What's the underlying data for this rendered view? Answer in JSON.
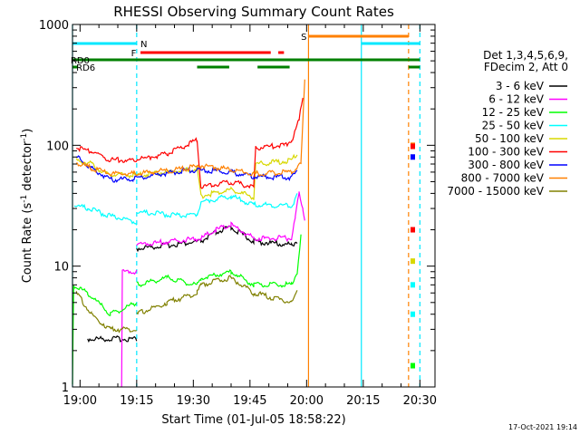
{
  "chart_data": {
    "type": "line",
    "title": "RHESSI Observing Summary Count Rates",
    "xlabel": "Start Time (01-Jul-05 18:58:22)",
    "ylabel_parts": [
      "Count Rate (s",
      "-1",
      " detector",
      "-1",
      ")"
    ],
    "y_scale": "log",
    "ylim": [
      1,
      1000
    ],
    "xlim_minutes": [
      0,
      96
    ],
    "x_tick_labels": [
      {
        "t": 2,
        "label": "19:00"
      },
      {
        "t": 17,
        "label": "19:15"
      },
      {
        "t": 32,
        "label": "19:30"
      },
      {
        "t": 47,
        "label": "19:45"
      },
      {
        "t": 62,
        "label": "20:00"
      },
      {
        "t": 77,
        "label": "20:15"
      },
      {
        "t": 92,
        "label": "20:30"
      }
    ],
    "y_tick_labels": [
      {
        "v": 1,
        "label": "1"
      },
      {
        "v": 10,
        "label": "10"
      },
      {
        "v": 100,
        "label": "100"
      },
      {
        "v": 1000,
        "label": "1000"
      }
    ],
    "legend_header": [
      "Det 1,3,4,5,6,9,",
      "FDecim 2, Att 0"
    ],
    "legend_placement": "right",
    "series": [
      {
        "name": "3 - 6 keV",
        "color": "#000000",
        "segs": [
          [
            [
              4,
              2.5
            ],
            [
              17,
              2.5
            ]
          ],
          [
            [
              17,
              14
            ],
            [
              34,
              16
            ],
            [
              38,
              19
            ],
            [
              42,
              21
            ],
            [
              48,
              16
            ],
            [
              58,
              15
            ],
            [
              59.5,
              16
            ]
          ]
        ]
      },
      {
        "name": "6 - 12 keV",
        "color": "#ff00ff",
        "segs": [
          [
            [
              13,
              1
            ],
            [
              13.2,
              9
            ],
            [
              17,
              9
            ]
          ],
          [
            [
              17,
              15
            ],
            [
              34,
              17
            ],
            [
              38,
              20
            ],
            [
              42,
              22
            ],
            [
              48,
              17
            ],
            [
              58,
              17
            ],
            [
              59,
              25
            ],
            [
              60,
              40
            ],
            [
              61,
              30
            ],
            [
              61.5,
              24
            ]
          ]
        ]
      },
      {
        "name": "12 - 25 keV",
        "color": "#00ff00",
        "segs": [
          [
            [
              0,
              1
            ],
            [
              0.3,
              7
            ],
            [
              4,
              6
            ],
            [
              10,
              4
            ],
            [
              17,
              5
            ]
          ],
          [
            [
              17,
              7
            ],
            [
              25,
              8
            ],
            [
              33,
              7
            ],
            [
              34,
              8
            ],
            [
              42,
              9
            ],
            [
              48,
              7
            ],
            [
              58,
              7
            ],
            [
              59.5,
              9
            ],
            [
              60.5,
              18
            ]
          ]
        ]
      },
      {
        "name": "25 - 50 keV",
        "color": "#00ffff",
        "segs": [
          [
            [
              0.5,
              32
            ],
            [
              4,
              30
            ],
            [
              10,
              26
            ],
            [
              17,
              23
            ]
          ],
          [
            [
              17,
              28
            ],
            [
              30,
              26
            ],
            [
              33,
              27
            ],
            [
              34,
              34
            ],
            [
              42,
              38
            ],
            [
              48,
              32
            ],
            [
              58,
              32
            ],
            [
              59.5,
              38
            ]
          ]
        ]
      },
      {
        "name": "50 - 100 keV",
        "color": "#d8d800",
        "segs": [
          [
            [
              1,
              75
            ],
            [
              5,
              70
            ],
            [
              9,
              58
            ],
            [
              16,
              56
            ],
            [
              30,
              62
            ],
            [
              33,
              65
            ],
            [
              34,
              38
            ],
            [
              42,
              43
            ],
            [
              48,
              37
            ],
            [
              48.5,
              70
            ],
            [
              58,
              75
            ],
            [
              59.5,
              85
            ]
          ]
        ]
      },
      {
        "name": "100 - 300 keV",
        "color": "#ff0000",
        "segs": [
          [
            [
              1,
              95
            ],
            [
              5,
              90
            ],
            [
              10,
              76
            ],
            [
              16,
              75
            ],
            [
              25,
              85
            ],
            [
              33,
              110
            ],
            [
              34,
              45
            ],
            [
              42,
              50
            ],
            [
              48,
              45
            ],
            [
              48.5,
              95
            ],
            [
              56,
              100
            ],
            [
              58,
              110
            ],
            [
              60,
              160
            ],
            [
              61,
              260
            ]
          ]
        ]
      },
      {
        "name": "300 - 800 keV",
        "color": "#0000ff",
        "segs": [
          [
            [
              1,
              80
            ],
            [
              5,
              65
            ],
            [
              10,
              52
            ],
            [
              16,
              53
            ],
            [
              30,
              62
            ],
            [
              34,
              62
            ],
            [
              42,
              60
            ],
            [
              48,
              55
            ],
            [
              58,
              54
            ],
            [
              59.5,
              60
            ]
          ]
        ]
      },
      {
        "name": "800 - 7000 keV",
        "color": "#ff8000",
        "segs": [
          [
            [
              1,
              72
            ],
            [
              5,
              65
            ],
            [
              10,
              58
            ],
            [
              16,
              58
            ],
            [
              30,
              64
            ],
            [
              34,
              68
            ],
            [
              42,
              63
            ],
            [
              48,
              58
            ],
            [
              58,
              60
            ],
            [
              60.5,
              70
            ],
            [
              61.5,
              350
            ]
          ]
        ]
      },
      {
        "name": "7000 - 15000 keV",
        "color": "#808000",
        "segs": [
          [
            [
              1,
              6
            ],
            [
              5,
              4
            ],
            [
              10,
              3
            ],
            [
              17,
              3
            ]
          ],
          [
            [
              17,
              4
            ],
            [
              25,
              5
            ],
            [
              33,
              6
            ],
            [
              34,
              7
            ],
            [
              42,
              8
            ],
            [
              48,
              6
            ],
            [
              58,
              5
            ],
            [
              59.5,
              6
            ]
          ]
        ]
      }
    ],
    "after_gap_points": [
      {
        "t": 90,
        "v": 100,
        "color": "#ff8000"
      },
      {
        "t": 90,
        "v": 98,
        "color": "#ff0000"
      },
      {
        "t": 90,
        "v": 80,
        "color": "#0000ff"
      },
      {
        "t": 90,
        "v": 20,
        "color": "#ff0000"
      },
      {
        "t": 90,
        "v": 11,
        "color": "#d8d800"
      },
      {
        "t": 90,
        "v": 7,
        "color": "#00ffff"
      },
      {
        "t": 90,
        "v": 4,
        "color": "#00ffff"
      },
      {
        "t": 90,
        "v": 1.5,
        "color": "#00ff00"
      }
    ],
    "flag_bars": [
      {
        "label": "N",
        "color": "#00e8ff",
        "y": 48,
        "segs": [
          [
            0,
            17
          ]
        ],
        "label_t": 18
      },
      {
        "label": "",
        "color": "#00e8ff",
        "y": 48,
        "segs": [
          [
            76.5,
            92
          ]
        ]
      },
      {
        "label": "S",
        "color": "#ff8000",
        "y": 40,
        "segs": [
          [
            62.5,
            89
          ]
        ],
        "label_t": 60.5
      },
      {
        "label": "F",
        "color": "#ff0000",
        "y": 58,
        "segs": [
          [
            18,
            52.5
          ],
          [
            54.5,
            56
          ]
        ],
        "label_t": 15.5
      },
      {
        "label": "RD0",
        "color": "#008000",
        "y": 66,
        "segs": [
          [
            0,
            89
          ]
        ],
        "label_t": -0.5
      },
      {
        "label": "",
        "color": "#008000",
        "y": 66,
        "segs": [
          [
            89,
            92
          ]
        ]
      },
      {
        "label": "RD6",
        "color": "#008000",
        "y": 74,
        "segs": [
          [
            0,
            1.5
          ],
          [
            33,
            41.5
          ],
          [
            49,
            57.5
          ],
          [
            89,
            92
          ]
        ],
        "label_t": 1
      }
    ],
    "vertical_markers": [
      {
        "t": 0,
        "color": "#00e8ff",
        "dashed": false
      },
      {
        "t": 17,
        "color": "#00e8ff",
        "dashed": true
      },
      {
        "t": 62.5,
        "color": "#ff8000",
        "dashed": false
      },
      {
        "t": 76.5,
        "color": "#00e8ff",
        "dashed": false
      },
      {
        "t": 89,
        "color": "#ff8000",
        "dashed": true
      },
      {
        "t": 92,
        "color": "#00e8ff",
        "dashed": true
      }
    ]
  },
  "footer": {
    "timestamp": "17-Oct-2021 19:14"
  }
}
